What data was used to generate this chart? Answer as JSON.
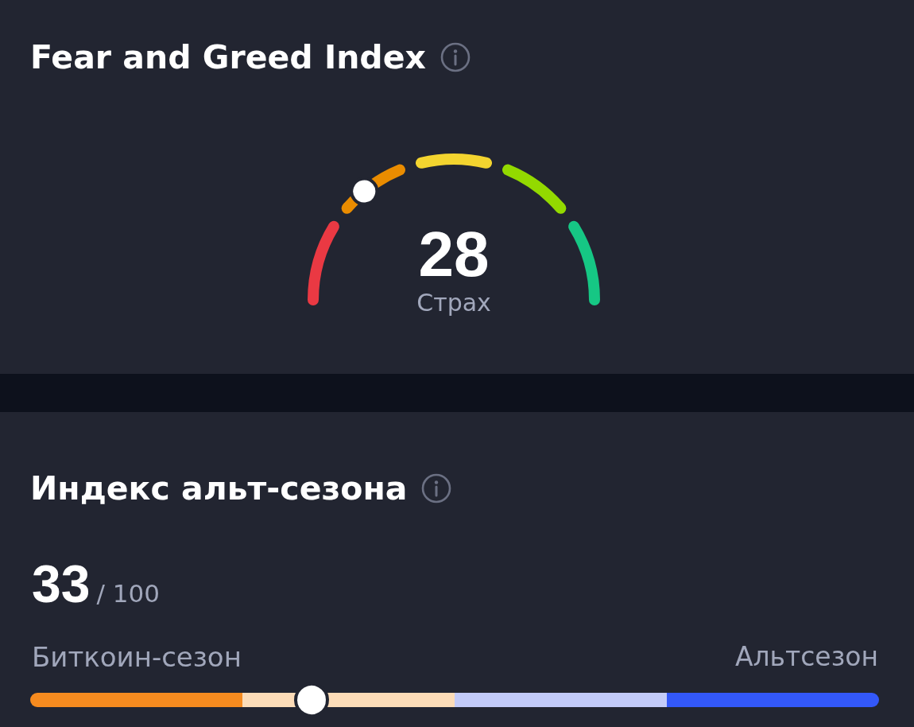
{
  "chart_data": [
    {
      "type": "other",
      "title": "Fear and Greed Index",
      "values": [
        28
      ],
      "data_labels": true,
      "annotations": [
        "Страх"
      ]
    },
    {
      "type": "other",
      "title": "Индекс альт-сезона",
      "values": [
        33
      ],
      "data_labels": true,
      "annotations": [
        "/ 100",
        "Биткоин-сезон",
        "Альтсезон"
      ]
    }
  ]
}
